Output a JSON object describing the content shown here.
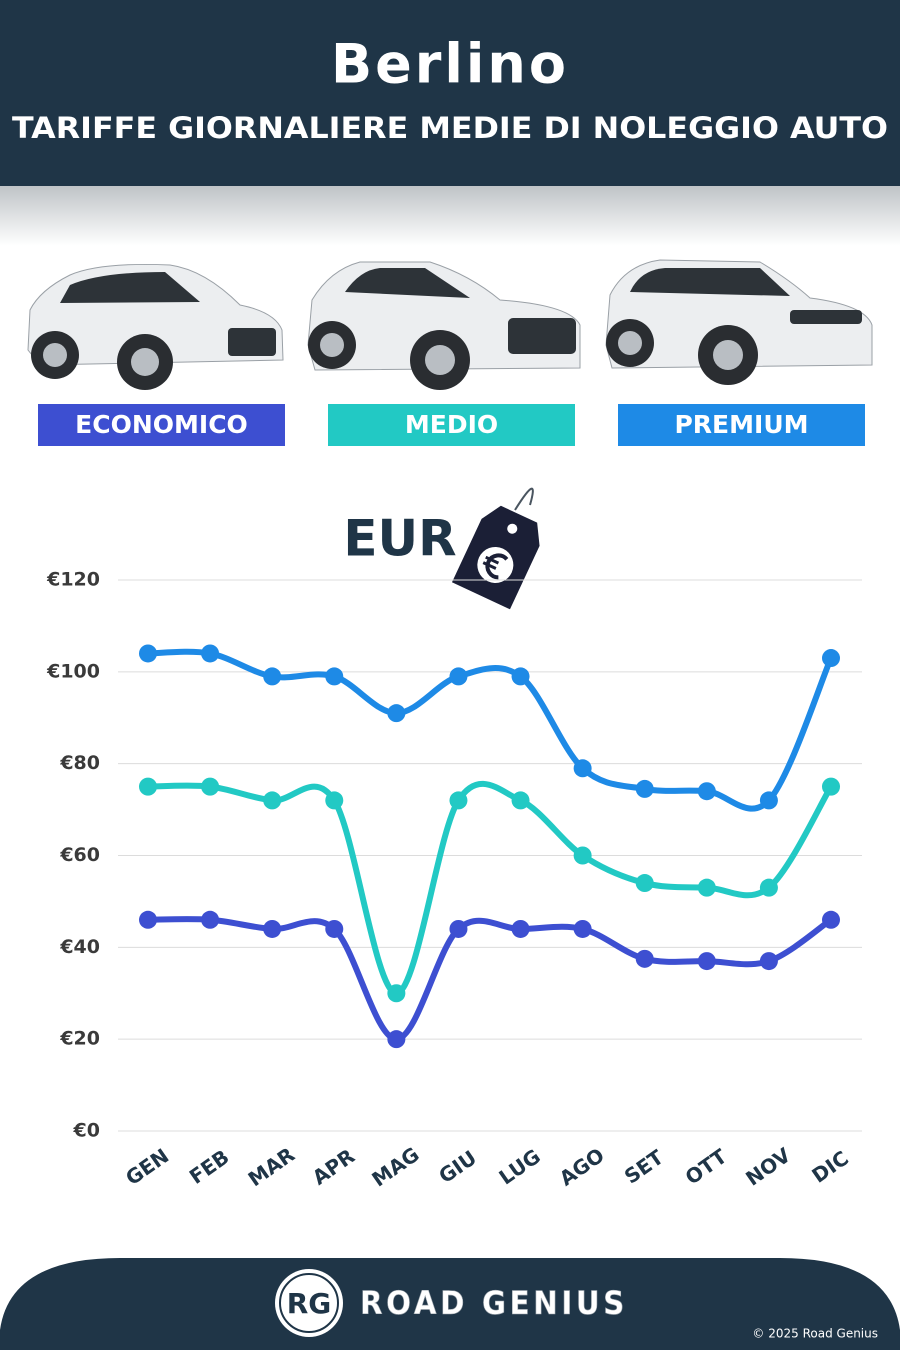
{
  "chart_data": {
    "type": "line",
    "title": "Berlino",
    "subtitle": "TARIFFE GIORNALIERE MEDIE DI NOLEGGIO AUTO",
    "unit_label": "EUR",
    "categories": [
      "GEN",
      "FEB",
      "MAR",
      "APR",
      "MAG",
      "GIU",
      "LUG",
      "AGO",
      "SET",
      "OTT",
      "NOV",
      "DIC"
    ],
    "series": [
      {
        "name": "ECONOMICO",
        "color": "#3d4fd1",
        "values": [
          46,
          46,
          44,
          44,
          20,
          44,
          44,
          44,
          37.5,
          37,
          37,
          46
        ]
      },
      {
        "name": "MEDIO",
        "color": "#22c9c4",
        "values": [
          75,
          75,
          72,
          72,
          30,
          72,
          72,
          60,
          54,
          53,
          53,
          75
        ]
      },
      {
        "name": "PREMIUM",
        "color": "#1e8ae6",
        "values": [
          104,
          104,
          99,
          99,
          91,
          99,
          99,
          79,
          74.5,
          74,
          72,
          103
        ]
      }
    ],
    "ylim": [
      0,
      120
    ],
    "yticks": [
      {
        "value": 0,
        "label": "€0"
      },
      {
        "value": 20,
        "label": "€20"
      },
      {
        "value": 40,
        "label": "€40"
      },
      {
        "value": 60,
        "label": "€60"
      },
      {
        "value": 80,
        "label": "€80"
      },
      {
        "value": 100,
        "label": "€100"
      },
      {
        "value": 120,
        "label": "€120"
      }
    ],
    "grid": true,
    "smooth": true
  },
  "footer": {
    "logo": "RG",
    "brand": "ROAD GENIUS",
    "copyright": "© 2025 Road Genius"
  }
}
